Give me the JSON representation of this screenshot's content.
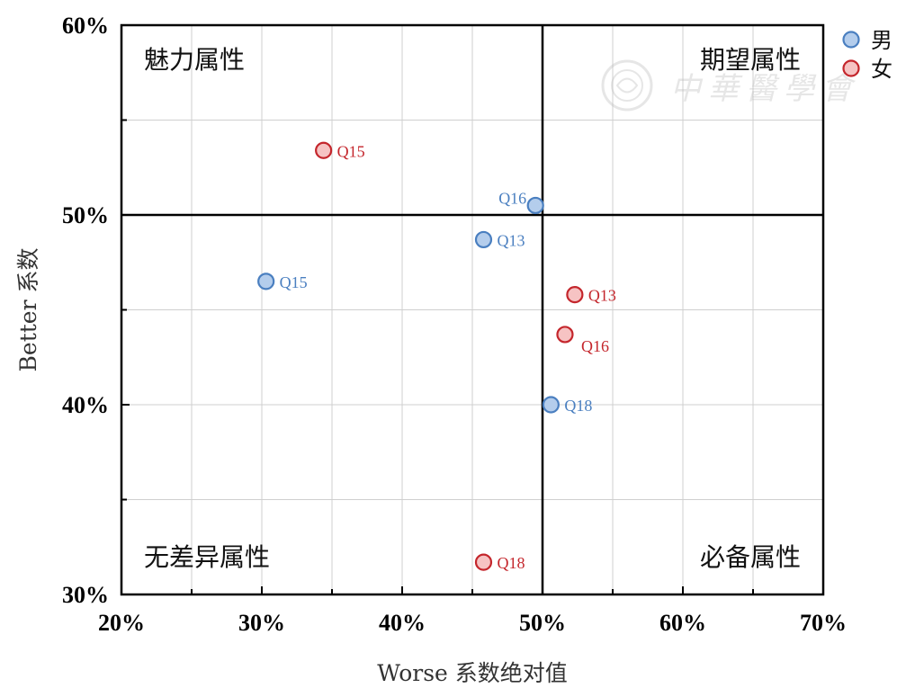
{
  "chart_data": {
    "type": "scatter",
    "xlabel": "Worse 系数绝对值",
    "ylabel": "Better 系数",
    "xlim": [
      0.2,
      0.7
    ],
    "ylim": [
      0.3,
      0.6
    ],
    "x_ticks": [
      0.2,
      0.3,
      0.4,
      0.5,
      0.6,
      0.7
    ],
    "x_tick_labels": [
      "20%",
      "30%",
      "40%",
      "50%",
      "60%",
      "70%"
    ],
    "y_ticks": [
      0.3,
      0.4,
      0.5,
      0.6
    ],
    "y_tick_labels": [
      "30%",
      "40%",
      "50%",
      "60%"
    ],
    "grid": true,
    "divider": {
      "x": 0.5,
      "y": 0.5
    },
    "quadrants": [
      {
        "label": "魅力属性",
        "position": "top-left"
      },
      {
        "label": "期望属性",
        "position": "top-right"
      },
      {
        "label": "无差异属性",
        "position": "bottom-left"
      },
      {
        "label": "必备属性",
        "position": "bottom-right"
      }
    ],
    "legend_position": "top-right-outside",
    "series": [
      {
        "name": "男",
        "fill": "#b4cdec",
        "stroke": "#4a7fc0",
        "label_color": "#4a7fc0",
        "points": [
          {
            "label": "Q16",
            "x": 0.495,
            "y": 0.505,
            "label_side": "left"
          },
          {
            "label": "Q13",
            "x": 0.458,
            "y": 0.487,
            "label_side": "right"
          },
          {
            "label": "Q15",
            "x": 0.303,
            "y": 0.465,
            "label_side": "right"
          },
          {
            "label": "Q18",
            "x": 0.506,
            "y": 0.4,
            "label_side": "right"
          }
        ]
      },
      {
        "name": "女",
        "fill": "#f6c3c3",
        "stroke": "#c4262c",
        "label_color": "#c4262c",
        "points": [
          {
            "label": "Q15",
            "x": 0.344,
            "y": 0.534,
            "label_side": "right"
          },
          {
            "label": "Q13",
            "x": 0.523,
            "y": 0.458,
            "label_side": "right"
          },
          {
            "label": "Q16",
            "x": 0.516,
            "y": 0.437,
            "label_side": "below-right"
          },
          {
            "label": "Q18",
            "x": 0.458,
            "y": 0.317,
            "label_side": "right"
          }
        ]
      }
    ]
  },
  "watermark": {
    "text": "中華醫學會"
  }
}
